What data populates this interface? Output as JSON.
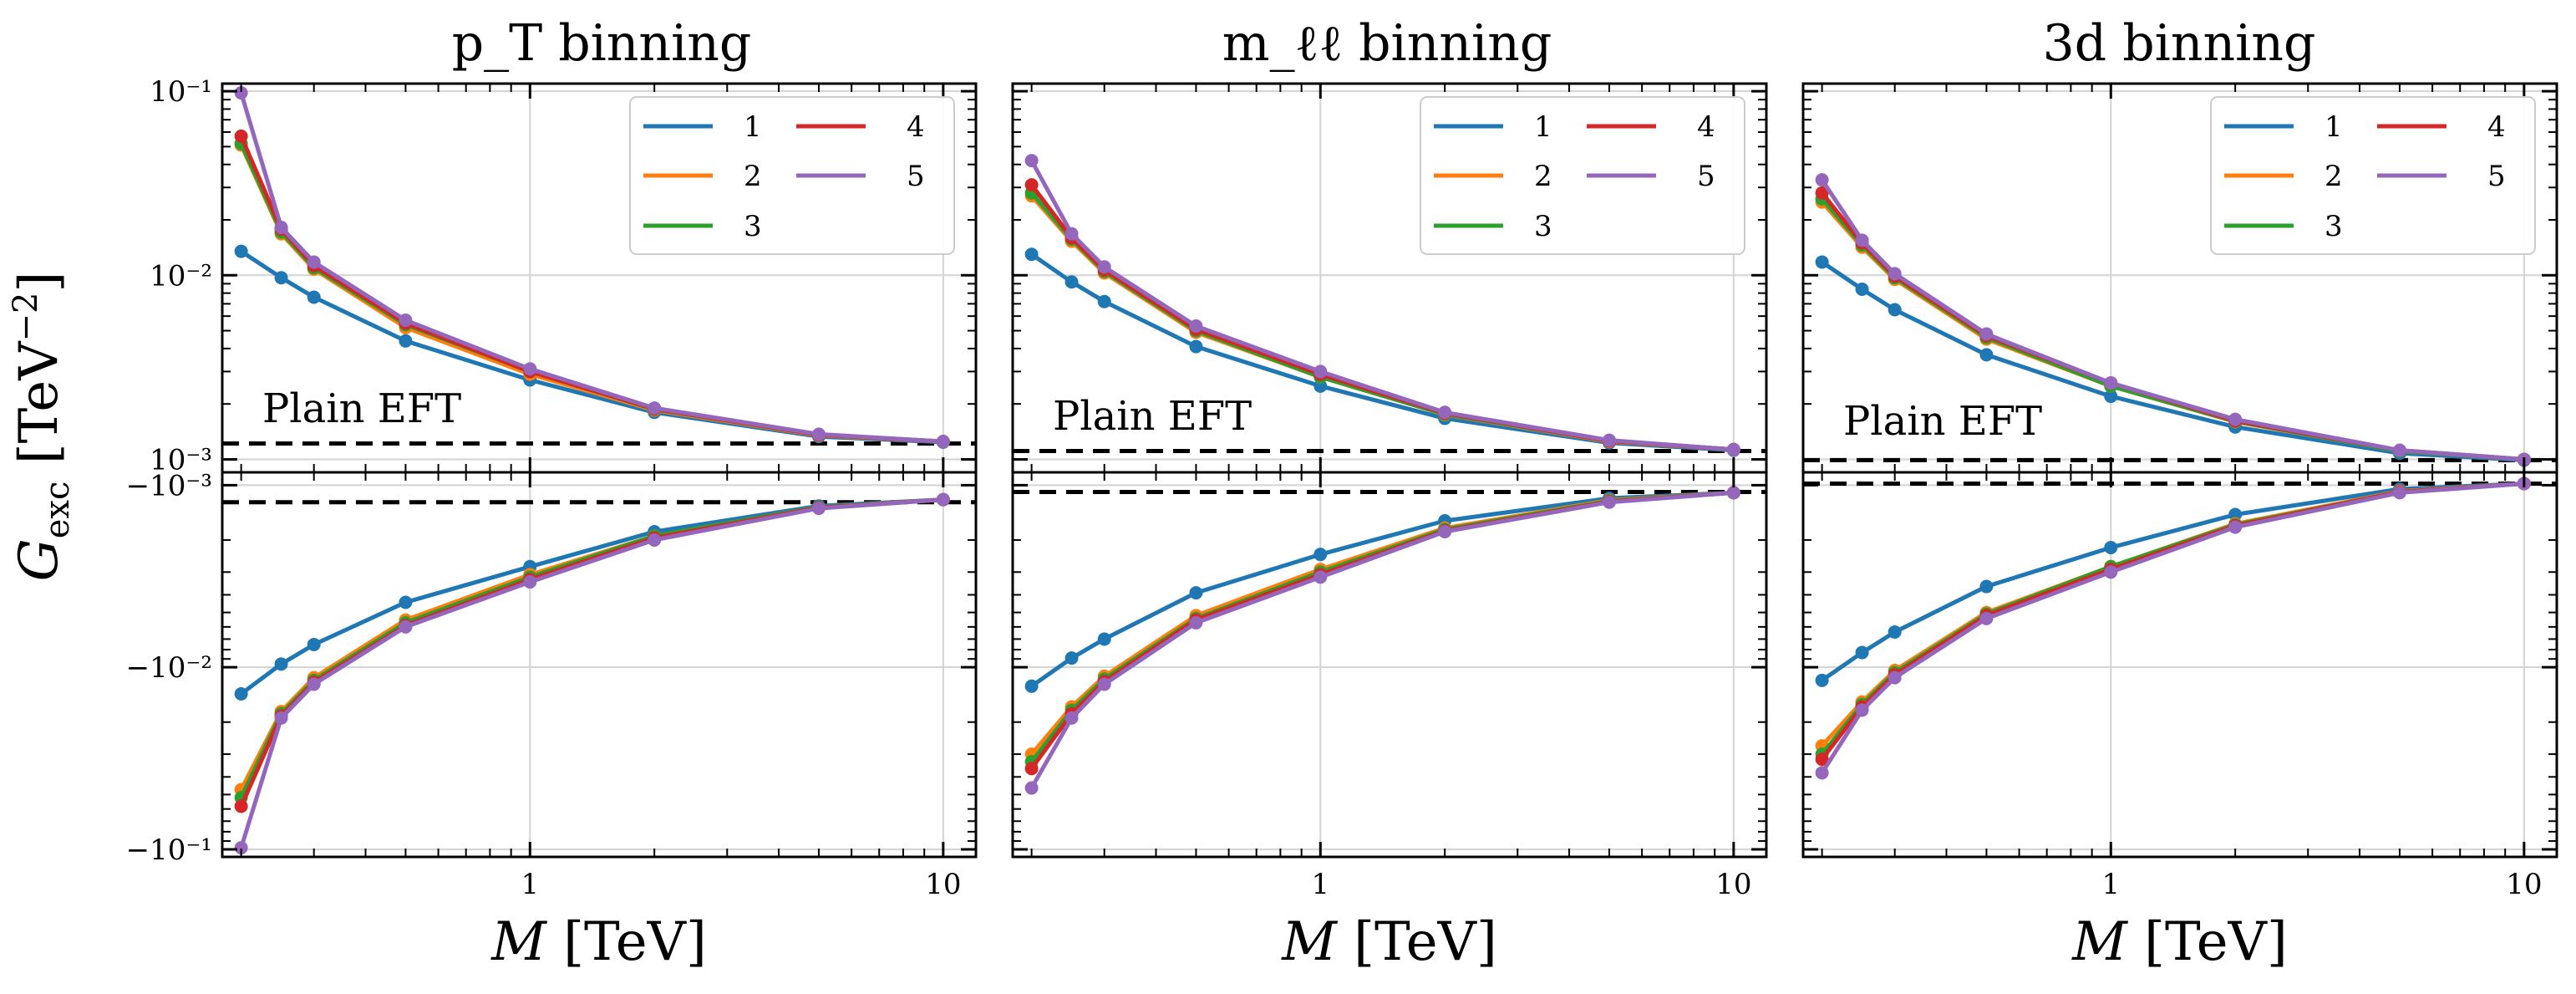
{
  "chart_data": {
    "type": "line",
    "ylabel": "G_exc [TeV^-2]",
    "xlabel": "M [TeV]",
    "xscale": "log",
    "xlim": [
      0.18,
      12
    ],
    "x": [
      0.2,
      0.25,
      0.3,
      0.5,
      1,
      2,
      5,
      10
    ],
    "x_ticks": [
      {
        "value": 1,
        "label": "1"
      },
      {
        "value": 10,
        "label": "10"
      }
    ],
    "colors": {
      "1": "#1f77b4",
      "2": "#ff7f0e",
      "3": "#2ca02c",
      "4": "#d62728",
      "5": "#9467bd",
      "baseline": "#000000",
      "grid": "#d3d3d3"
    },
    "legend": {
      "location": "top-right",
      "entries": [
        "1",
        "2",
        "3",
        "4",
        "5"
      ]
    },
    "top_ylim": [
      0.00085,
      0.11
    ],
    "bottom_ylim": [
      0.00085,
      0.11
    ],
    "top_y_ticks": [
      {
        "value": 0.1,
        "label": "10⁻¹"
      },
      {
        "value": 0.01,
        "label": "10⁻²"
      },
      {
        "value": 0.001,
        "label": "10⁻³"
      }
    ],
    "bottom_y_ticks": [
      {
        "value": 0.001,
        "label": "−10⁻³"
      },
      {
        "value": 0.01,
        "label": "−10⁻²"
      },
      {
        "value": 0.1,
        "label": "−10⁻¹"
      }
    ],
    "panels": [
      {
        "title": "p_T binning",
        "annotation": "Plain EFT",
        "baseline_positive": 0.00122,
        "baseline_negative": 0.00124,
        "positive_series": [
          {
            "name": "1",
            "values": [
              0.0135,
              0.0097,
              0.0076,
              0.0044,
              0.0027,
              0.0018,
              0.00133,
              0.00124
            ]
          },
          {
            "name": "2",
            "values": [
              0.051,
              0.0168,
              0.0108,
              0.0052,
              0.0029,
              0.00185,
              0.00135,
              0.00125
            ]
          },
          {
            "name": "3",
            "values": [
              0.052,
              0.0172,
              0.011,
              0.0054,
              0.003,
              0.00187,
              0.00136,
              0.00125
            ]
          },
          {
            "name": "4",
            "values": [
              0.057,
              0.0178,
              0.0113,
              0.0055,
              0.003,
              0.00188,
              0.00136,
              0.00125
            ]
          },
          {
            "name": "5",
            "values": [
              0.098,
              0.0182,
              0.0118,
              0.0057,
              0.0031,
              0.0019,
              0.00137,
              0.00125
            ]
          }
        ],
        "negative_series": [
          {
            "name": "1",
            "values": [
              0.014,
              0.0096,
              0.0075,
              0.0044,
              0.0028,
              0.0018,
              0.0013,
              0.0012
            ]
          },
          {
            "name": "2",
            "values": [
              0.047,
              0.0175,
              0.0114,
              0.0055,
              0.0031,
              0.0019,
              0.00132,
              0.0012
            ]
          },
          {
            "name": "3",
            "values": [
              0.052,
              0.018,
              0.0118,
              0.0057,
              0.0032,
              0.0019,
              0.00132,
              0.0012
            ]
          },
          {
            "name": "4",
            "values": [
              0.058,
              0.0185,
              0.0121,
              0.0059,
              0.0033,
              0.00195,
              0.00133,
              0.0012
            ]
          },
          {
            "name": "5",
            "values": [
              0.098,
              0.019,
              0.0124,
              0.006,
              0.0034,
              0.002,
              0.00134,
              0.0012
            ]
          }
        ]
      },
      {
        "title": "m_ℓℓ binning",
        "annotation": "Plain EFT",
        "baseline_positive": 0.00111,
        "baseline_negative": 0.00109,
        "positive_series": [
          {
            "name": "1",
            "values": [
              0.013,
              0.0092,
              0.0072,
              0.0041,
              0.0025,
              0.00167,
              0.00123,
              0.00112
            ]
          },
          {
            "name": "2",
            "values": [
              0.027,
              0.0153,
              0.0103,
              0.0049,
              0.0028,
              0.00175,
              0.00125,
              0.00113
            ]
          },
          {
            "name": "3",
            "values": [
              0.028,
              0.0157,
              0.0105,
              0.005,
              0.0028,
              0.00176,
              0.00126,
              0.00113
            ]
          },
          {
            "name": "4",
            "values": [
              0.031,
              0.016,
              0.0107,
              0.0051,
              0.0029,
              0.00178,
              0.00126,
              0.00113
            ]
          },
          {
            "name": "5",
            "values": [
              0.042,
              0.0168,
              0.0111,
              0.0053,
              0.003,
              0.0018,
              0.00127,
              0.00113
            ]
          }
        ],
        "negative_series": [
          {
            "name": "1",
            "values": [
              0.0127,
              0.0089,
              0.007,
              0.0039,
              0.0024,
              0.00157,
              0.00118,
              0.0011
            ]
          },
          {
            "name": "2",
            "values": [
              0.03,
              0.0165,
              0.0112,
              0.0052,
              0.0029,
              0.00172,
              0.00121,
              0.0011
            ]
          },
          {
            "name": "3",
            "values": [
              0.033,
              0.0172,
              0.0116,
              0.0054,
              0.003,
              0.00175,
              0.00122,
              0.0011
            ]
          },
          {
            "name": "4",
            "values": [
              0.036,
              0.018,
              0.012,
              0.0055,
              0.0031,
              0.00178,
              0.00123,
              0.0011
            ]
          },
          {
            "name": "5",
            "values": [
              0.046,
              0.019,
              0.0124,
              0.0057,
              0.0032,
              0.0018,
              0.00124,
              0.0011
            ]
          }
        ]
      },
      {
        "title": "3d binning",
        "annotation": "Plain EFT",
        "baseline_positive": 0.00099,
        "baseline_negative": 0.00098,
        "positive_series": [
          {
            "name": "1",
            "values": [
              0.0118,
              0.0084,
              0.0065,
              0.0037,
              0.0022,
              0.0015,
              0.00108,
              0.00099
            ]
          },
          {
            "name": "2",
            "values": [
              0.025,
              0.0142,
              0.0095,
              0.0045,
              0.0025,
              0.0016,
              0.00111,
              0.001
            ]
          },
          {
            "name": "3",
            "values": [
              0.026,
              0.0146,
              0.0097,
              0.0046,
              0.0025,
              0.00161,
              0.00111,
              0.001
            ]
          },
          {
            "name": "4",
            "values": [
              0.028,
              0.015,
              0.0099,
              0.0047,
              0.0026,
              0.00162,
              0.00112,
              0.001
            ]
          },
          {
            "name": "5",
            "values": [
              0.033,
              0.0155,
              0.0102,
              0.0048,
              0.0026,
              0.00165,
              0.00112,
              0.001
            ]
          }
        ],
        "negative_series": [
          {
            "name": "1",
            "values": [
              0.0118,
              0.0083,
              0.0064,
              0.0036,
              0.0022,
              0.00145,
              0.00105,
              0.00098
            ]
          },
          {
            "name": "2",
            "values": [
              0.027,
              0.0155,
              0.0104,
              0.005,
              0.0028,
              0.00163,
              0.00108,
              0.00098
            ]
          },
          {
            "name": "3",
            "values": [
              0.03,
              0.016,
              0.0107,
              0.0051,
              0.0028,
              0.00165,
              0.00109,
              0.00098
            ]
          },
          {
            "name": "4",
            "values": [
              0.032,
              0.0165,
              0.011,
              0.0052,
              0.0029,
              0.00167,
              0.00109,
              0.00098
            ]
          },
          {
            "name": "5",
            "values": [
              0.038,
              0.0172,
              0.0114,
              0.0054,
              0.003,
              0.0017,
              0.0011,
              0.00098
            ]
          }
        ]
      }
    ]
  }
}
